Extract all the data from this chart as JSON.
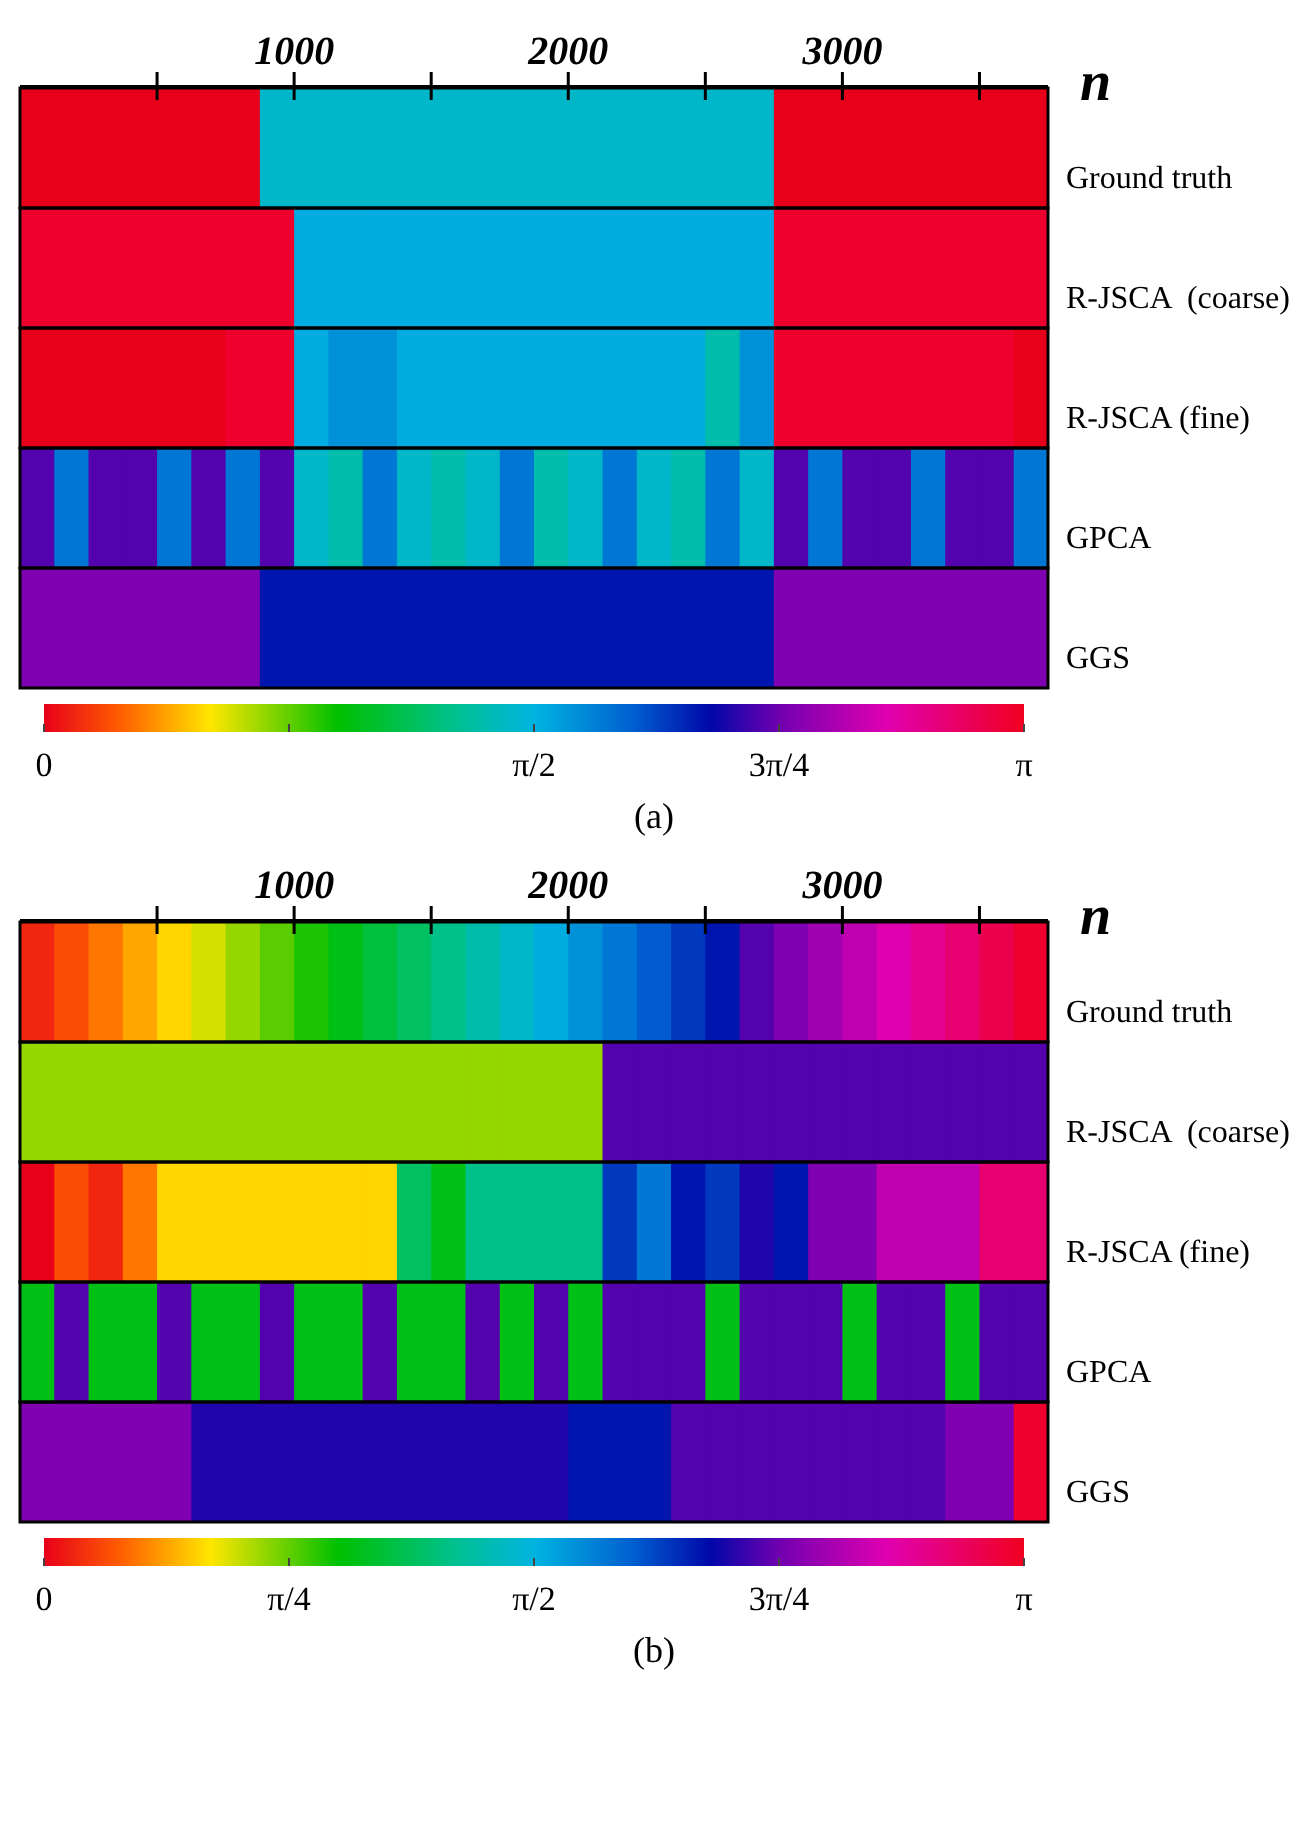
{
  "chart_data": [
    {
      "type": "heatmap",
      "title": "(a)",
      "xlabel": "n",
      "xlim": [
        0,
        3750
      ],
      "xticks": [
        {
          "value": 500,
          "label": null
        },
        1000,
        {
          "value": 1500,
          "label": null
        },
        2000,
        {
          "value": 2500,
          "label": null
        },
        3000,
        {
          "value": 3500,
          "label": null
        }
      ],
      "x": [
        62.5,
        187.5,
        312.5,
        437.5,
        562.5,
        687.5,
        812.5,
        937.5,
        1062.5,
        1187.5,
        1312.5,
        1437.5,
        1562.5,
        1687.5,
        1812.5,
        1937.5,
        2062.5,
        2187.5,
        2312.5,
        2437.5,
        2562.5,
        2687.5,
        2812.5,
        2937.5,
        3062.5,
        3187.5,
        3312.5,
        3437.5,
        3562.5,
        3687.5
      ],
      "y_categories": [
        "Ground truth",
        "R-JSCA  (coarse)",
        "R-JSCA (fine)",
        "GPCA",
        "GGS"
      ],
      "cells": [
        [
          0,
          0,
          0,
          0,
          0,
          0,
          0,
          1.5,
          1.5,
          1.5,
          1.5,
          1.5,
          1.5,
          1.5,
          1.5,
          1.5,
          1.5,
          1.5,
          1.5,
          1.5,
          1.5,
          1.5,
          0,
          0,
          0,
          0,
          0,
          0,
          0,
          0
        ],
        [
          3.1,
          3.1,
          3.1,
          3.1,
          3.1,
          3.1,
          3.1,
          3.1,
          1.6,
          1.6,
          1.6,
          1.6,
          1.6,
          1.6,
          1.6,
          1.6,
          1.6,
          1.6,
          1.6,
          1.6,
          1.6,
          1.6,
          3.1,
          3.1,
          3.1,
          3.1,
          3.1,
          3.1,
          3.1,
          3.1
        ],
        [
          0,
          0,
          0,
          0,
          0,
          0,
          3.1,
          3.1,
          1.6,
          1.7,
          1.7,
          1.6,
          1.6,
          1.6,
          1.6,
          1.6,
          1.6,
          1.6,
          1.6,
          1.6,
          1.4,
          1.7,
          3.1,
          3.1,
          3.1,
          3.1,
          3.1,
          3.1,
          3.1,
          0
        ],
        [
          2.3,
          1.8,
          2.3,
          2.3,
          1.8,
          2.3,
          1.8,
          2.3,
          1.5,
          1.4,
          1.8,
          1.5,
          1.4,
          1.5,
          1.8,
          1.4,
          1.5,
          1.8,
          1.5,
          1.4,
          1.8,
          1.5,
          2.3,
          1.8,
          2.3,
          2.3,
          1.8,
          2.3,
          2.3,
          1.8
        ],
        [
          2.4,
          2.4,
          2.4,
          2.4,
          2.4,
          2.4,
          2.4,
          2.1,
          2.1,
          2.1,
          2.1,
          2.1,
          2.1,
          2.1,
          2.1,
          2.1,
          2.1,
          2.1,
          2.1,
          2.1,
          2.1,
          2.1,
          2.4,
          2.4,
          2.4,
          2.4,
          2.4,
          2.4,
          2.4,
          2.4
        ]
      ],
      "clim": [
        0,
        3.1416
      ],
      "cticks": [
        0,
        {
          "value": 0.7854,
          "label": null
        },
        {
          "value": 1.5708,
          "label": "π/2"
        },
        {
          "value": 2.3562,
          "label": "3π/4"
        },
        {
          "value": 3.1416,
          "label": "π"
        }
      ]
    },
    {
      "type": "heatmap",
      "title": "(b)",
      "xlabel": "n",
      "xlim": [
        0,
        3750
      ],
      "xticks": [
        {
          "value": 500,
          "label": null
        },
        1000,
        {
          "value": 1500,
          "label": null
        },
        2000,
        {
          "value": 2500,
          "label": null
        },
        3000,
        {
          "value": 3500,
          "label": null
        }
      ],
      "x": [
        62.5,
        187.5,
        312.5,
        437.5,
        562.5,
        687.5,
        812.5,
        937.5,
        1062.5,
        1187.5,
        1312.5,
        1437.5,
        1562.5,
        1687.5,
        1812.5,
        1937.5,
        2062.5,
        2187.5,
        2312.5,
        2437.5,
        2562.5,
        2687.5,
        2812.5,
        2937.5,
        3062.5,
        3187.5,
        3312.5,
        3437.5,
        3562.5,
        3687.5
      ],
      "y_categories": [
        "Ground truth",
        "R-JSCA  (coarse)",
        "R-JSCA (fine)",
        "GPCA",
        "GGS"
      ],
      "cells": [
        [
          0.1,
          0.2,
          0.3,
          0.4,
          0.5,
          0.6,
          0.7,
          0.8,
          0.9,
          1.0,
          1.1,
          1.2,
          1.3,
          1.4,
          1.5,
          1.6,
          1.7,
          1.8,
          1.9,
          2.0,
          2.1,
          2.3,
          2.4,
          2.5,
          2.6,
          2.7,
          2.8,
          2.9,
          3.0,
          3.1
        ],
        [
          0.7,
          0.7,
          0.7,
          0.7,
          0.7,
          0.7,
          0.7,
          0.7,
          0.7,
          0.7,
          0.7,
          0.7,
          0.7,
          0.7,
          0.7,
          0.7,
          0.7,
          2.3,
          2.3,
          2.3,
          2.3,
          2.3,
          2.3,
          2.3,
          2.3,
          2.3,
          2.3,
          2.3,
          2.3,
          2.3
        ],
        [
          0,
          0.2,
          0.1,
          0.3,
          0.5,
          0.5,
          0.5,
          0.5,
          0.5,
          0.5,
          0.5,
          1.2,
          1.0,
          1.3,
          1.3,
          1.3,
          1.3,
          2.0,
          1.8,
          2.1,
          2.0,
          2.2,
          2.1,
          2.4,
          2.4,
          2.6,
          2.6,
          2.6,
          2.9,
          2.9
        ],
        [
          1.0,
          2.3,
          1.0,
          1.0,
          2.3,
          1.0,
          1.0,
          2.3,
          1.0,
          1.0,
          2.3,
          1.0,
          1.0,
          2.3,
          1.0,
          2.3,
          1.0,
          2.3,
          2.3,
          2.3,
          1.0,
          2.3,
          2.3,
          2.3,
          1.0,
          2.3,
          2.3,
          1.0,
          2.3,
          2.3
        ],
        [
          2.4,
          2.4,
          2.4,
          2.4,
          2.4,
          2.2,
          2.2,
          2.2,
          2.2,
          2.2,
          2.2,
          2.2,
          2.2,
          2.2,
          2.2,
          2.2,
          2.1,
          2.1,
          2.1,
          2.3,
          2.3,
          2.3,
          2.3,
          2.3,
          2.3,
          2.3,
          2.3,
          2.4,
          2.4,
          3.1
        ]
      ],
      "clim": [
        0,
        3.1416
      ],
      "cticks": [
        0,
        {
          "value": 0.7854,
          "label": "π/4"
        },
        {
          "value": 1.5708,
          "label": "π/2"
        },
        {
          "value": 2.3562,
          "label": "3π/4"
        },
        {
          "value": 3.1416,
          "label": "π"
        }
      ]
    }
  ]
}
